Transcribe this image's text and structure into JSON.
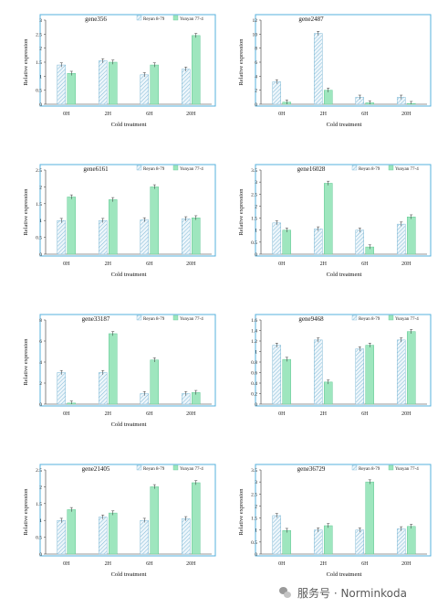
{
  "legend_labels": [
    "Reyan 8-79",
    "Yunyan 77-4"
  ],
  "colors": {
    "reyan_fill": "#eef6fb",
    "reyan_stroke": "#7fb9d6",
    "yunyan_fill": "#9ee6be",
    "yunyan_stroke": "#62c894",
    "plot_border": "#55b0dc",
    "axis": "#333333"
  },
  "watermark": "服务号 · Norminkoda",
  "chart_data": [
    {
      "type": "bar",
      "title": "gene356",
      "xlabel": "Cold treatment",
      "ylabel": "Relative expression",
      "categories": [
        "0H",
        "2H",
        "6H",
        "20H"
      ],
      "ylim": [
        0,
        3
      ],
      "yticks": [
        "0",
        "0.5",
        "1",
        "1.5",
        "2",
        "2.5",
        "3"
      ],
      "legend": "top-right",
      "series": [
        {
          "name": "Reyan 8-79",
          "values": [
            1.4,
            1.55,
            1.05,
            1.25
          ]
        },
        {
          "name": "Yunyan 77-4",
          "values": [
            1.1,
            1.5,
            1.4,
            2.45
          ]
        }
      ]
    },
    {
      "type": "bar",
      "title": "gene2487",
      "xlabel": "Cold treatment",
      "ylabel": "Relative expression",
      "categories": [
        "0H",
        "2H",
        "6H",
        "20H"
      ],
      "ylim": [
        0,
        12
      ],
      "yticks": [
        "0",
        "2",
        "4",
        "6",
        "8",
        "10",
        "12"
      ],
      "legend": "none",
      "series": [
        {
          "name": "Reyan 8-79",
          "values": [
            3.2,
            10.1,
            1.0,
            1.0
          ]
        },
        {
          "name": "Yunyan 77-4",
          "values": [
            0.3,
            2.0,
            0.2,
            0.1
          ]
        }
      ]
    },
    {
      "type": "bar",
      "title": "gene6161",
      "xlabel": "Cold treatment",
      "ylabel": "Relative expression",
      "categories": [
        "0H",
        "2H",
        "6H",
        "20H"
      ],
      "ylim": [
        0,
        2.5
      ],
      "yticks": [
        "0",
        "0.5",
        "1",
        "1.5",
        "2",
        "2.5"
      ],
      "legend": "top-right",
      "series": [
        {
          "name": "Reyan 8-79",
          "values": [
            1.0,
            1.0,
            1.02,
            1.05
          ]
        },
        {
          "name": "Yunyan 77-4",
          "values": [
            1.7,
            1.62,
            2.0,
            1.08
          ]
        }
      ]
    },
    {
      "type": "bar",
      "title": "gene16028",
      "xlabel": "Cold treatment",
      "ylabel": "Relative expression",
      "categories": [
        "0H",
        "2H",
        "6H",
        "20H"
      ],
      "ylim": [
        0,
        3.5
      ],
      "yticks": [
        "0",
        "0.5",
        "1",
        "1.5",
        "2",
        "2.5",
        "3",
        "3.5"
      ],
      "legend": "top-right",
      "series": [
        {
          "name": "Reyan 8-79",
          "values": [
            1.3,
            1.05,
            1.0,
            1.25
          ]
        },
        {
          "name": "Yunyan 77-4",
          "values": [
            1.0,
            2.95,
            0.3,
            1.55
          ]
        }
      ]
    },
    {
      "type": "bar",
      "title": "gene33187",
      "xlabel": "Cold treatment",
      "ylabel": "Relative expression",
      "categories": [
        "0H",
        "2H",
        "6H",
        "20H"
      ],
      "ylim": [
        0,
        8
      ],
      "yticks": [
        "0",
        "2",
        "4",
        "6",
        "8"
      ],
      "legend": "top-right",
      "series": [
        {
          "name": "Reyan 8-79",
          "values": [
            3.0,
            3.0,
            1.0,
            1.0
          ]
        },
        {
          "name": "Yunyan 77-4",
          "values": [
            0.1,
            6.7,
            4.2,
            1.1
          ]
        }
      ]
    },
    {
      "type": "bar",
      "title": "gene9468",
      "xlabel": "",
      "ylabel": "",
      "categories": [
        "0H",
        "2H",
        "6H",
        "20H"
      ],
      "ylim": [
        0,
        1.6
      ],
      "yticks": [
        "0",
        "0.2",
        "0.4",
        "0.6",
        "0.8",
        "1",
        "1.2",
        "1.4",
        "1.6"
      ],
      "legend": "top-right",
      "series": [
        {
          "name": "Reyan 8-79",
          "values": [
            1.12,
            1.22,
            1.05,
            1.22
          ]
        },
        {
          "name": "Yunyan 77-4",
          "values": [
            0.85,
            0.42,
            1.12,
            1.38
          ]
        }
      ]
    },
    {
      "type": "bar",
      "title": "gene21405",
      "xlabel": "Cold treatment",
      "ylabel": "Relative expression",
      "categories": [
        "0H",
        "2H",
        "6H",
        "20H"
      ],
      "ylim": [
        0,
        2.5
      ],
      "yticks": [
        "0",
        "0.5",
        "1",
        "1.5",
        "2",
        "2.5"
      ],
      "legend": "top-right",
      "series": [
        {
          "name": "Reyan 8-79",
          "values": [
            1.0,
            1.1,
            1.0,
            1.05
          ]
        },
        {
          "name": "Yunyan 77-4",
          "values": [
            1.32,
            1.22,
            2.0,
            2.12
          ]
        }
      ]
    },
    {
      "type": "bar",
      "title": "gene36729",
      "xlabel": "Cold treatment",
      "ylabel": "Relative expression",
      "categories": [
        "0H",
        "2H",
        "6H",
        "20H"
      ],
      "ylim": [
        0,
        3.5
      ],
      "yticks": [
        "0",
        "0.5",
        "1",
        "1.5",
        "2",
        "2.5",
        "3",
        "3.5"
      ],
      "legend": "top-right",
      "series": [
        {
          "name": "Reyan 8-79",
          "values": [
            1.6,
            1.0,
            1.0,
            1.05
          ]
        },
        {
          "name": "Yunyan 77-4",
          "values": [
            0.98,
            1.18,
            3.0,
            1.15
          ]
        }
      ]
    }
  ]
}
